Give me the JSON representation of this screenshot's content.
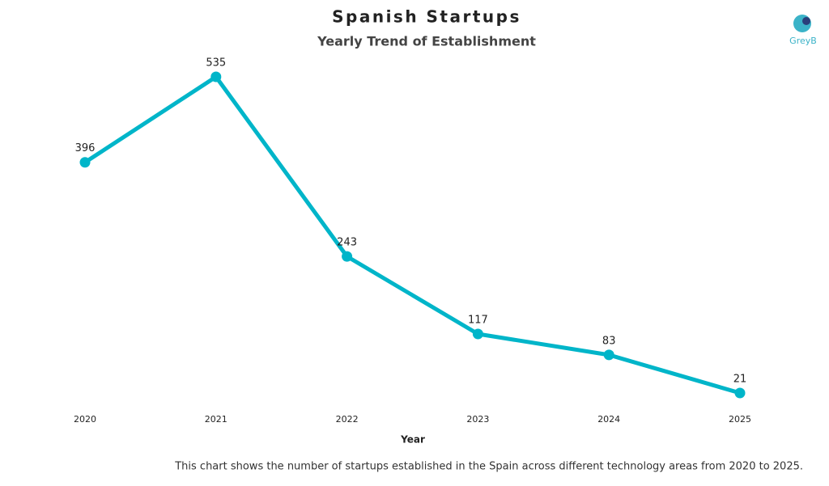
{
  "chart_data": {
    "type": "line",
    "title": "Spanish Startups",
    "subtitle": "Yearly Trend of Establishment",
    "x_label": "Year",
    "categories": [
      "2020",
      "2021",
      "2022",
      "2023",
      "2024",
      "2025"
    ],
    "values": [
      396,
      535,
      243,
      117,
      83,
      21
    ],
    "color": "#00b5c9",
    "caption": "This chart shows the number of startups established in the Spain across different technology areas from 2020 to 2025.",
    "logo": "GreyB"
  }
}
